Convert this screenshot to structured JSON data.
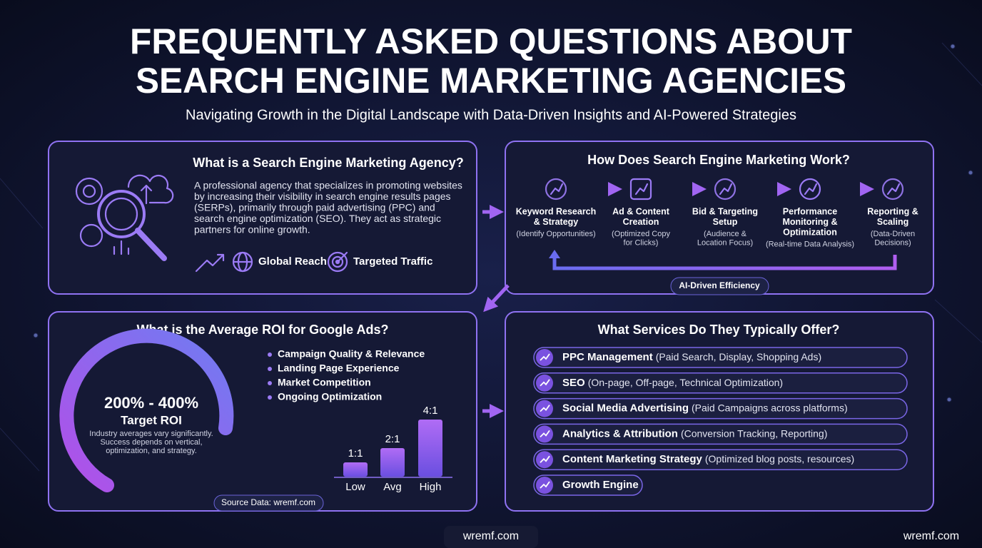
{
  "header": {
    "title_lines": [
      "FREQUENTLY ASKED QUESTIONS ABOUT",
      "SEARCH ENGINE MARKETING AGENCIES"
    ],
    "subtitle": "Navigating Growth in the Digital Landscape with Data-Driven Insights and AI-Powered Strategies"
  },
  "agency": {
    "title": "What is a Search Engine Marketing Agency?",
    "description_lines": [
      "A professional agency that specializes in promoting websites",
      "by increasing their visibility in search engine results pages",
      "(SERPs), primarily through paid advertising (PPC) and",
      "search engine optimization (SEO). They act as strategic",
      "partners for online growth."
    ],
    "features": [
      "Global Reach",
      "Targeted Traffic"
    ]
  },
  "process": {
    "title": "How Does Search Engine Marketing Work?",
    "steps": [
      {
        "title_lines": [
          "Keyword Research",
          "& Strategy"
        ],
        "detail_lines": [
          "(Identify Opportunities)"
        ]
      },
      {
        "title_lines": [
          "Ad & Content",
          "Creation"
        ],
        "detail_lines": [
          "(Optimized Copy",
          "for Clicks)"
        ]
      },
      {
        "title_lines": [
          "Bid & Targeting",
          "Setup"
        ],
        "detail_lines": [
          "(Audience &",
          "Location Focus)"
        ]
      },
      {
        "title_lines": [
          "Performance",
          "Monitoring &",
          "Optimization"
        ],
        "detail_lines": [
          "(Real-time Data Analysis)"
        ]
      },
      {
        "title_lines": [
          "Reporting &",
          "Scaling"
        ],
        "detail_lines": [
          "(Data-Driven",
          "Decisions)"
        ]
      }
    ],
    "loop_label": "AI-Driven Efficiency"
  },
  "roi": {
    "title": "What is the Average ROI for Google Ads?",
    "range": "200% - 400%",
    "range_label": "Target ROI",
    "note_lines": [
      "Industry averages vary significantly.",
      "Success depends on vertical,",
      "optimization, and strategy."
    ],
    "factors": [
      "Campaign Quality & Relevance",
      "Landing Page Experience",
      "Market Competition",
      "Ongoing Optimization"
    ],
    "chart": {
      "categories": [
        "Low",
        "Avg",
        "High"
      ],
      "values": [
        1,
        2,
        4
      ],
      "value_labels": [
        "1:1",
        "2:1",
        "4:1"
      ]
    },
    "source": "Source Data: wremf.com"
  },
  "services": {
    "title": "What Services Do They Typically Offer?",
    "items": [
      {
        "name": "PPC Management",
        "detail": "(Paid Search, Display, Shopping Ads)"
      },
      {
        "name": "SEO",
        "detail": "(On-page, Off-page, Technical Optimization)"
      },
      {
        "name": "Social Media Advertising",
        "detail": "(Paid Campaigns across platforms)"
      },
      {
        "name": "Analytics & Attribution",
        "detail": "(Conversion Tracking, Reporting)"
      },
      {
        "name": "Content Marketing Strategy",
        "detail": "(Optimized blog posts, resources)"
      },
      {
        "name": "Growth Engine"
      }
    ]
  },
  "watermarks": [
    "wremf.com",
    "wremf.com"
  ]
}
